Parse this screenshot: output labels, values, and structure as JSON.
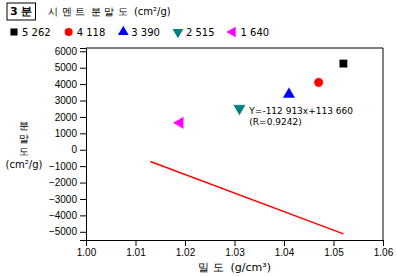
{
  "chart_data": {
    "type": "scatter",
    "title": "3 분",
    "legend_title": "시 멘 트  분 말 도  (cm²/g)",
    "xlabel": "밀 도  (g/cm³)",
    "ylabel": [
      "분",
      "말",
      "도",
      "(cm²/g)"
    ],
    "xlim": [
      1.0,
      1.06
    ],
    "ylim": [
      -5500,
      6200
    ],
    "xticks": [
      {
        "value": 1.0,
        "label": "1.00"
      },
      1.01,
      1.02,
      1.03,
      1.04,
      1.05,
      1.06
    ],
    "yticks": [
      {
        "value": -5000,
        "label": "−5000"
      },
      {
        "value": -4000,
        "label": "−4000"
      },
      {
        "value": -3000,
        "label": "−3000"
      },
      {
        "value": -2000,
        "label": "−2000"
      },
      {
        "value": -1000,
        "label": "−1000"
      },
      0,
      1000,
      2000,
      3000,
      4000,
      5000,
      6000
    ],
    "grid": false,
    "legend": "top",
    "series": [
      {
        "name": "5 262",
        "marker": "square",
        "color": "black",
        "x": [
          1.052
        ],
        "values": [
          5250
        ]
      },
      {
        "name": "4 118",
        "marker": "circle",
        "color": "red",
        "x": [
          1.047
        ],
        "values": [
          4100
        ]
      },
      {
        "name": "3 390",
        "marker": "triangle-up",
        "color": "blue",
        "x": [
          1.041
        ],
        "values": [
          3380
        ]
      },
      {
        "name": "2 515",
        "marker": "triangle-down",
        "color": "#008080",
        "x": [
          1.031
        ],
        "values": [
          2520
        ]
      },
      {
        "name": "1 640",
        "marker": "triangle-left",
        "color": "magenta",
        "x": [
          1.019
        ],
        "values": [
          1640
        ]
      },
      {
        "type": "line",
        "color": "red",
        "x": [
          1.013,
          1.052
        ],
        "values": [
          -720.869,
          -5124.476
        ]
      }
    ],
    "annotations": [
      {
        "lines": [
          "Y=-112 913x+113 660",
          "(R=0.9242)"
        ],
        "x": 1.033,
        "y": 1350
      }
    ]
  }
}
